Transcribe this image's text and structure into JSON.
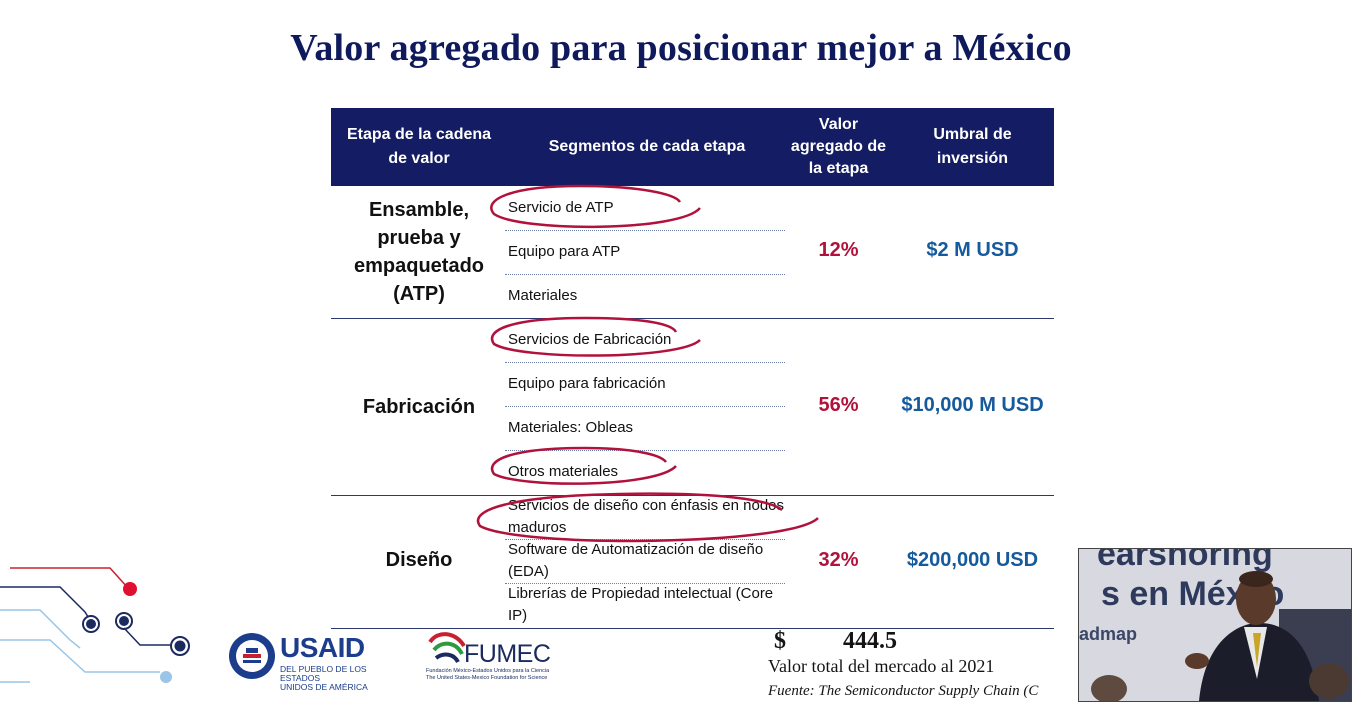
{
  "title": "Valor agregado para posicionar mejor a México",
  "table": {
    "headers": [
      "Etapa de la cadena\nde valor",
      "Segmentos de cada etapa",
      "Valor\nagregado de\nla etapa",
      "Umbral de\ninversión"
    ],
    "rows": [
      {
        "stage": "Ensamble,\nprueba y\nempaquetado\n(ATP)",
        "segments": [
          "Servicio de ATP",
          "Equipo para ATP",
          "Materiales"
        ],
        "value_added": "12%",
        "threshold": "$2 M USD"
      },
      {
        "stage": "Fabricación",
        "segments": [
          "Servicios de Fabricación",
          "Equipo para fabricación",
          "Materiales: Obleas",
          "Otros materiales"
        ],
        "value_added": "56%",
        "threshold": "$10,000 M USD"
      },
      {
        "stage": "Diseño",
        "segments": [
          "Servicios de diseño con énfasis en nodos maduros",
          "Software de Automatización de diseño (EDA)",
          "Librerías de Propiedad intelectual (Core IP)"
        ],
        "value_added": "32%",
        "threshold": "$200,000 USD"
      }
    ]
  },
  "total": {
    "currency": "$",
    "amount": "444.5",
    "label": "Valor total del mercado al 2021"
  },
  "source": "Fuente: The Semiconductor Supply Chain (C",
  "logos": {
    "usaid": "USAID",
    "usaid_sub": "DEL PUEBLO DE LOS ESTADOS\nUNIDOS DE AMÉRICA",
    "fumec": "FUMEC",
    "fumec_sub": "Fundación México-Estados Unidos para la Ciencia\nThe United States-Mexico Foundation for Science"
  },
  "video": {
    "line1": "earshoring",
    "line2": "s en Méxco",
    "line3": "admap"
  },
  "colors": {
    "header_bg": "#141c63",
    "title": "#0f1a5c",
    "percent": "#b0123c",
    "threshold": "#155a9c",
    "circle": "#b0123c"
  }
}
